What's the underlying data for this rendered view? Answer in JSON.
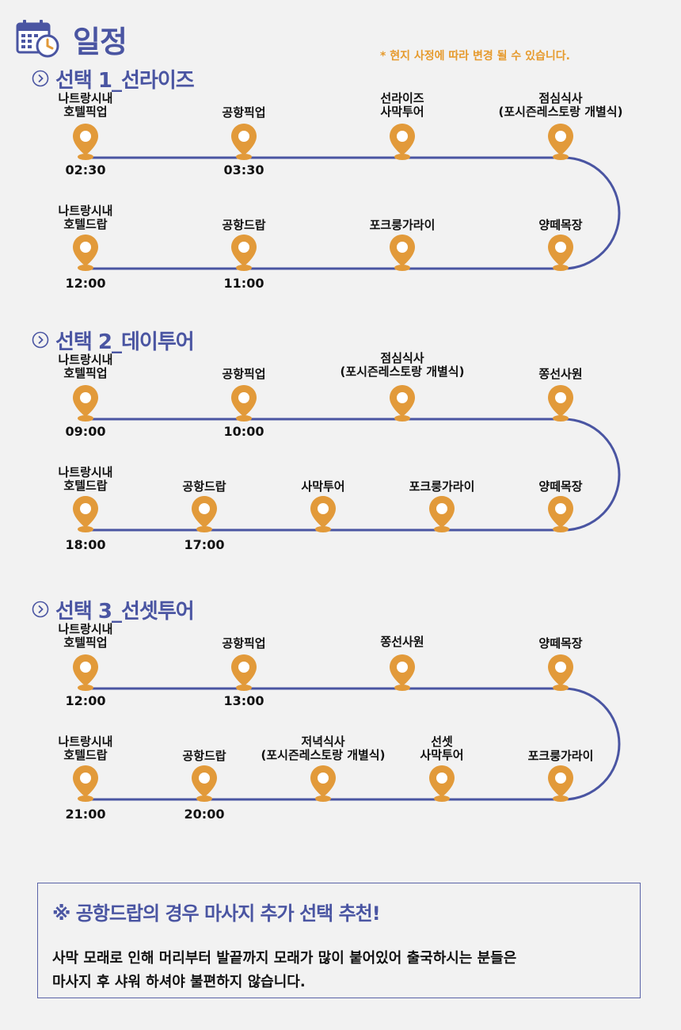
{
  "header": {
    "title": "일정",
    "notice": "* 현지 사정에 따라 변경 될 수 있습니다.",
    "icon": "calendar-clock-icon"
  },
  "colors": {
    "accent": "#4a55a2",
    "pin": "#e29a3a",
    "notice": "#e69a2c"
  },
  "sections": [
    {
      "title": "선택 1_선라이즈",
      "top_row": [
        {
          "label": "나트랑시내\n호텔픽업",
          "time": "02:30"
        },
        {
          "label": "공항픽업",
          "time": "03:30"
        },
        {
          "label": "선라이즈\n사막투어",
          "time": ""
        },
        {
          "label": "점심식사\n(포시즌레스토랑 개별식)",
          "time": ""
        }
      ],
      "bottom_row": [
        {
          "label": "나트랑시내\n호텔드랍",
          "time": "12:00"
        },
        {
          "label": "공항드랍",
          "time": "11:00"
        },
        {
          "label": "포크룽가라이",
          "time": ""
        },
        {
          "label": "양떼목장",
          "time": ""
        }
      ]
    },
    {
      "title": "선택 2_데이투어",
      "top_row": [
        {
          "label": "나트랑시내\n호텔픽업",
          "time": "09:00"
        },
        {
          "label": "공항픽업",
          "time": "10:00"
        },
        {
          "label": "점심식사\n(포시즌레스토랑 개별식)",
          "time": ""
        },
        {
          "label": "쫑선사원",
          "time": ""
        }
      ],
      "bottom_row": [
        {
          "label": "나트랑시내\n호텔드랍",
          "time": "18:00"
        },
        {
          "label": "공항드랍",
          "time": "17:00"
        },
        {
          "label": "사막투어",
          "time": ""
        },
        {
          "label": "포크룽가라이",
          "time": ""
        },
        {
          "label": "양떼목장",
          "time": ""
        }
      ]
    },
    {
      "title": "선택 3_선셋투어",
      "top_row": [
        {
          "label": "나트랑시내\n호텔픽업",
          "time": "12:00"
        },
        {
          "label": "공항픽업",
          "time": "13:00"
        },
        {
          "label": "쫑선사원",
          "time": ""
        },
        {
          "label": "양떼목장",
          "time": ""
        }
      ],
      "bottom_row": [
        {
          "label": "나트랑시내\n호텔드랍",
          "time": "21:00"
        },
        {
          "label": "공항드랍",
          "time": "20:00"
        },
        {
          "label": "저녁식사\n(포시즌레스토랑 개별식)",
          "time": ""
        },
        {
          "label": "선셋\n사막투어",
          "time": ""
        },
        {
          "label": "포크룽가라이",
          "time": ""
        }
      ]
    }
  ],
  "note": {
    "title": "※ 공항드랍의 경우 마사지 추가 선택 추천!",
    "line1": "사막 모래로 인해 머리부터 발끝까지 모래가 많이 붙어있어 출국하시는 분들은",
    "line2": "마사지 후 샤워 하셔야 불편하지 않습니다."
  }
}
